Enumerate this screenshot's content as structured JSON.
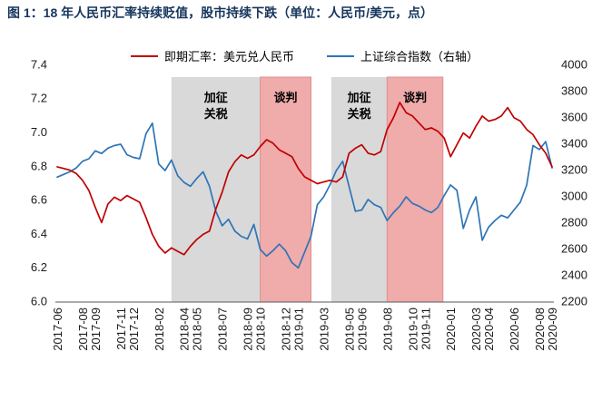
{
  "title": "图 1：18 年人民币汇率持续贬值，股市持续下跌（单位：人民币/美元，点）",
  "legend": [
    {
      "label": "即期汇率：美元兑人民币",
      "color": "#c00000"
    },
    {
      "label": "上证综合指数（右轴）",
      "color": "#2e75b6"
    }
  ],
  "colors": {
    "title_navy": "#17365d",
    "red_series": "#c00000",
    "blue_series": "#2e75b6",
    "gray_band": "#d9d9d9",
    "pink_band": "#f0abab",
    "axis_line": "#595959"
  },
  "chart_data": {
    "type": "line",
    "title": "18 年人民币汇率持续贬值，股市持续下跌（单位：人民币/美元，点）",
    "x_unit": "months since 2017-06 (series sampled every 0.5 month)",
    "x_max": 39,
    "left_axis": {
      "min": 6.0,
      "max": 7.4,
      "ticks": [
        "6.0",
        "6.2",
        "6.4",
        "6.6",
        "6.8",
        "7.0",
        "7.2",
        "7.4"
      ]
    },
    "right_axis": {
      "min": 2200,
      "max": 4000,
      "ticks": [
        "2200",
        "2400",
        "2600",
        "2800",
        "3000",
        "3200",
        "3400",
        "3600",
        "3800",
        "4000"
      ]
    },
    "x_ticks": [
      {
        "label": "2017-06",
        "m": 0
      },
      {
        "label": "2017-08",
        "m": 2
      },
      {
        "label": "2017-09",
        "m": 3
      },
      {
        "label": "2017-11",
        "m": 5
      },
      {
        "label": "2017-12",
        "m": 6
      },
      {
        "label": "2018-02",
        "m": 8
      },
      {
        "label": "2018-04",
        "m": 10
      },
      {
        "label": "2018-05",
        "m": 11
      },
      {
        "label": "2018-07",
        "m": 13
      },
      {
        "label": "2018-09",
        "m": 15
      },
      {
        "label": "2018-10",
        "m": 16
      },
      {
        "label": "2018-12",
        "m": 18
      },
      {
        "label": "2019-01",
        "m": 19
      },
      {
        "label": "2019-03",
        "m": 21
      },
      {
        "label": "2019-05",
        "m": 23
      },
      {
        "label": "2019-06",
        "m": 24
      },
      {
        "label": "2019-08",
        "m": 26
      },
      {
        "label": "2019-10",
        "m": 28
      },
      {
        "label": "2019-11",
        "m": 29
      },
      {
        "label": "2020-01",
        "m": 31
      },
      {
        "label": "2020-03",
        "m": 33
      },
      {
        "label": "2020-04",
        "m": 34
      },
      {
        "label": "2020-06",
        "m": 36
      },
      {
        "label": "2020-08",
        "m": 38
      },
      {
        "label": "2020-09",
        "m": 39
      }
    ],
    "bands": [
      {
        "label": "加征关税",
        "label_lines": [
          "加征",
          "关税"
        ],
        "from": 9,
        "to": 16,
        "color": "#d9d9d9",
        "edge": "none"
      },
      {
        "label": "谈判",
        "label_lines": [
          "谈判"
        ],
        "from": 16,
        "to": 20,
        "color": "#f0abab",
        "edge": "#de8f8f"
      },
      {
        "label": "加征关税",
        "label_lines": [
          "加征",
          "关税"
        ],
        "from": 21.6,
        "to": 26,
        "color": "#d9d9d9",
        "edge": "none"
      },
      {
        "label": "谈判",
        "label_lines": [
          "谈判"
        ],
        "from": 26,
        "to": 30.4,
        "color": "#f0abab",
        "edge": "#de8f8f"
      }
    ],
    "series": [
      {
        "name": "即期汇率：美元兑人民币",
        "axis": "left",
        "color": "#c00000",
        "x_step": 0.5,
        "values": [
          6.8,
          6.79,
          6.78,
          6.76,
          6.72,
          6.66,
          6.56,
          6.47,
          6.58,
          6.62,
          6.6,
          6.63,
          6.61,
          6.59,
          6.5,
          6.4,
          6.33,
          6.29,
          6.32,
          6.3,
          6.28,
          6.33,
          6.37,
          6.4,
          6.42,
          6.55,
          6.65,
          6.77,
          6.83,
          6.87,
          6.85,
          6.87,
          6.92,
          6.96,
          6.94,
          6.9,
          6.88,
          6.86,
          6.79,
          6.74,
          6.72,
          6.7,
          6.71,
          6.72,
          6.71,
          6.74,
          6.88,
          6.91,
          6.93,
          6.88,
          6.87,
          6.89,
          7.02,
          7.09,
          7.18,
          7.12,
          7.1,
          7.06,
          7.02,
          7.03,
          7.01,
          6.97,
          6.86,
          6.93,
          7.0,
          6.97,
          7.04,
          7.1,
          7.07,
          7.08,
          7.1,
          7.15,
          7.09,
          7.07,
          7.02,
          6.99,
          6.93,
          6.88,
          6.8
        ]
      },
      {
        "name": "上证综合指数（右轴）",
        "axis": "right",
        "color": "#2e75b6",
        "x_step": 0.5,
        "values": [
          3150,
          3170,
          3190,
          3220,
          3270,
          3290,
          3350,
          3330,
          3370,
          3390,
          3400,
          3320,
          3300,
          3290,
          3480,
          3560,
          3250,
          3200,
          3280,
          3160,
          3110,
          3080,
          3140,
          3190,
          3080,
          2890,
          2780,
          2830,
          2740,
          2700,
          2680,
          2790,
          2600,
          2550,
          2590,
          2640,
          2590,
          2500,
          2460,
          2580,
          2700,
          2940,
          3000,
          3090,
          3200,
          3270,
          3080,
          2890,
          2900,
          2980,
          2940,
          2920,
          2820,
          2880,
          2930,
          3000,
          2950,
          2930,
          2900,
          2880,
          2920,
          3010,
          3090,
          3050,
          2760,
          2900,
          3000,
          2670,
          2770,
          2820,
          2860,
          2840,
          2900,
          2960,
          3090,
          3390,
          3360,
          3420,
          3220
        ]
      }
    ],
    "grid": "off",
    "legend_position": "top-center"
  }
}
